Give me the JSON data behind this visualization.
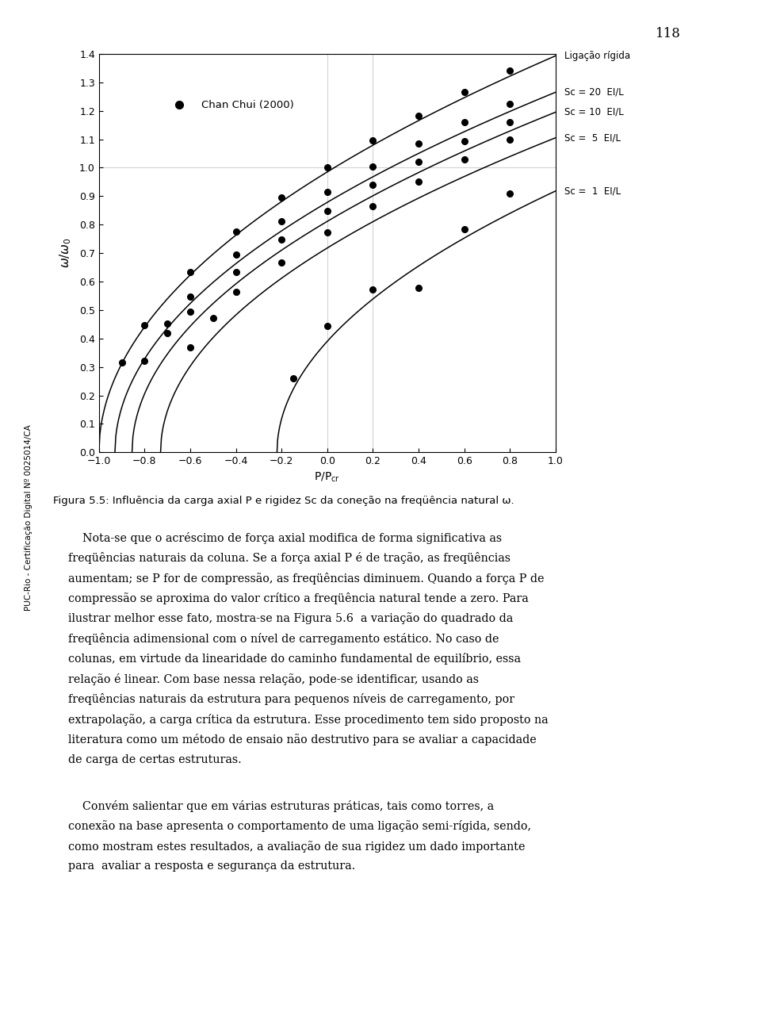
{
  "title_page_num": "118",
  "xlabel": "P/P_{cr}",
  "ylabel": "ω/ω₀",
  "xlim": [
    -1.0,
    1.0
  ],
  "ylim": [
    0.0,
    1.4
  ],
  "xticks": [
    -1.0,
    -0.8,
    -0.6,
    -0.4,
    -0.2,
    0.0,
    0.2,
    0.4,
    0.6,
    0.8,
    1.0
  ],
  "yticks": [
    0.0,
    0.1,
    0.2,
    0.3,
    0.4,
    0.5,
    0.6,
    0.7,
    0.8,
    0.9,
    1.0,
    1.1,
    1.2,
    1.3,
    1.4
  ],
  "curve_labels": [
    "Ligação rígida",
    "Sc = 20  EI/L",
    "Sc = 10  EI/L",
    "Sc =  5  EI/L",
    "Sc =  1  EI/L"
  ],
  "figure_caption": "Figura 5.5: Influência da carga axial P e rigidez Sc da coneção na freqüência natural ω.",
  "side_text": "PUC-Rio - Certificação Digital Nº 0025014/CA",
  "curves_params": [
    [
      -1.0,
      1.393
    ],
    [
      -0.93,
      1.265
    ],
    [
      -0.855,
      1.195
    ],
    [
      -0.73,
      1.105
    ],
    [
      -0.22,
      0.918
    ]
  ],
  "data_points": [
    [
      [
        -0.9,
        0.316
      ],
      [
        -0.8,
        0.447
      ],
      [
        -0.6,
        0.632
      ],
      [
        -0.4,
        0.775
      ],
      [
        -0.2,
        0.894
      ],
      [
        0.0,
        1.0
      ],
      [
        0.2,
        1.095
      ],
      [
        0.4,
        1.183
      ],
      [
        0.6,
        1.265
      ],
      [
        0.8,
        1.342
      ]
    ],
    [
      [
        -0.8,
        0.32
      ],
      [
        -0.7,
        0.453
      ],
      [
        -0.6,
        0.548
      ],
      [
        -0.4,
        0.694
      ],
      [
        -0.2,
        0.813
      ],
      [
        0.0,
        0.916
      ],
      [
        0.2,
        1.005
      ],
      [
        0.4,
        1.086
      ],
      [
        0.6,
        1.16
      ],
      [
        0.8,
        1.225
      ]
    ],
    [
      [
        -0.7,
        0.42
      ],
      [
        -0.6,
        0.495
      ],
      [
        -0.4,
        0.633
      ],
      [
        -0.2,
        0.748
      ],
      [
        0.0,
        0.849
      ],
      [
        0.2,
        0.939
      ],
      [
        0.4,
        1.02
      ],
      [
        0.6,
        1.093
      ],
      [
        0.8,
        1.16
      ]
    ],
    [
      [
        -0.6,
        0.37
      ],
      [
        -0.5,
        0.473
      ],
      [
        -0.4,
        0.563
      ],
      [
        -0.2,
        0.668
      ],
      [
        0.0,
        0.772
      ],
      [
        0.2,
        0.865
      ],
      [
        0.4,
        0.95
      ],
      [
        0.6,
        1.028
      ],
      [
        0.8,
        1.1
      ]
    ],
    [
      [
        -0.15,
        0.26
      ],
      [
        0.0,
        0.445
      ],
      [
        0.2,
        0.572
      ],
      [
        0.4,
        0.578
      ],
      [
        0.6,
        0.783
      ],
      [
        0.8,
        0.91
      ]
    ]
  ],
  "label_y_positions": [
    1.393,
    1.265,
    1.195,
    1.105,
    0.918
  ],
  "body_text1": "    Nota-se que o acréscimo de força axial modifica de forma significativa as\nfreqüências naturais da coluna. Se a força axial P é de tração, as freqüências\numentam; se P for de compressão, as freqüências diminuem. Quando a força P de\ncompressão se aproxima do valor crítico a freqüência natural tende a zero. Para\nilustrar melhor esse fato, mostra-se na Figura 5.6  a variação do quadrado da\nfreqüência adimensional com o nível de carregamento estático. No caso de\ncolunas, em virtude da linearidade do caminho fundamental de equilíbrio, essa\nrelação é linear. Com base nessa relação, pode-se identificar, usando as\nfreqüências naturais da estrutura para pequenos níveis de carregamento, por\nextrapolação, a carga crítica da estrutura. Esse procedimento tem sido proposto na\nliteratura como um método de ensaio não destrutivo para se avaliar a capacidade\nde carga de certas estruturas.",
  "body_text2": "    Convém salientar que em várias estruturas práticas, tais como torres, a\nconeção na base apresenta o comportamento de uma ligação semi-rígida, sendo,\ncomo mostram estes resultados, a avaliação de sua rigidez um dado importante\npara  avaliar a resposta e segurança da estrutura."
}
